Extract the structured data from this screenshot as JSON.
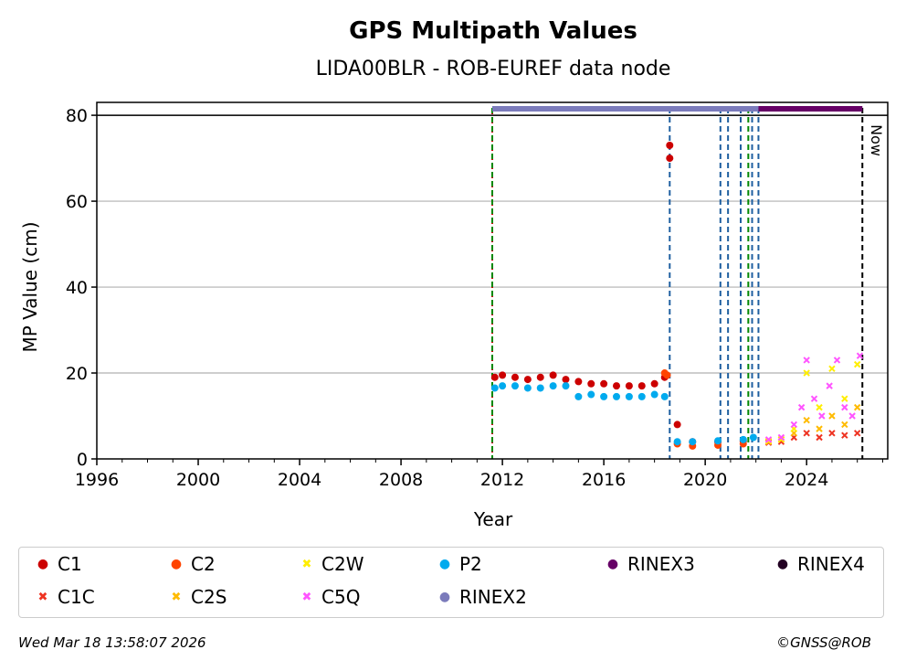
{
  "chart_data": {
    "type": "scatter",
    "title": "GPS Multipath Values",
    "subtitle": "LIDA00BLR - ROB-EUREF data node",
    "xlabel": "Year",
    "ylabel": "MP Value (cm)",
    "xlim": [
      1996,
      2027.2
    ],
    "ylim": [
      0,
      83
    ],
    "x_ticks": [
      1996,
      2000,
      2004,
      2008,
      2012,
      2016,
      2020,
      2024
    ],
    "x_tick_labels": [
      "1996",
      "2000",
      "2004",
      "2008",
      "2012",
      "2016",
      "2020",
      "2024"
    ],
    "y_ticks": [
      0,
      20,
      40,
      60,
      80
    ],
    "y_tick_labels": [
      "0",
      "20",
      "40",
      "60",
      "80"
    ],
    "grid": "horizontal",
    "reference_line_y": 80,
    "now_label": "Now",
    "now_x": 2026.2,
    "event_lines": [
      {
        "x": 2011.6,
        "color": "#cc0000",
        "style": "dotted"
      },
      {
        "x": 2011.6,
        "color": "#008800",
        "style": "dashed"
      },
      {
        "x": 2018.6,
        "color": "#1f5fa0",
        "style": "dashed"
      },
      {
        "x": 2020.6,
        "color": "#1f5fa0",
        "style": "dashed"
      },
      {
        "x": 2020.9,
        "color": "#1f5fa0",
        "style": "dashed"
      },
      {
        "x": 2021.4,
        "color": "#1f5fa0",
        "style": "dashed"
      },
      {
        "x": 2021.7,
        "color": "#008800",
        "style": "dashed"
      },
      {
        "x": 2021.85,
        "color": "#1f5fa0",
        "style": "dashed"
      },
      {
        "x": 2022.1,
        "color": "#1f5fa0",
        "style": "dashed"
      },
      {
        "x": 2026.2,
        "color": "#000000",
        "style": "dashed"
      }
    ],
    "rinex_bars": [
      {
        "name": "RINEX2",
        "x_start": 2011.6,
        "x_end": 2022.1,
        "y": 81.5,
        "color": "#7b7bbb"
      },
      {
        "name": "RINEX3",
        "x_start": 2022.1,
        "x_end": 2026.2,
        "y": 81.5,
        "color": "#660066"
      }
    ],
    "series": [
      {
        "name": "C1",
        "color": "#cc0000",
        "marker": "dot",
        "points": [
          [
            2011.7,
            19
          ],
          [
            2012.0,
            19.5
          ],
          [
            2012.5,
            19
          ],
          [
            2013.0,
            18.5
          ],
          [
            2013.5,
            19
          ],
          [
            2014.0,
            19.5
          ],
          [
            2014.5,
            18.5
          ],
          [
            2015.0,
            18
          ],
          [
            2015.5,
            17.5
          ],
          [
            2016.0,
            17.5
          ],
          [
            2016.5,
            17
          ],
          [
            2017.0,
            17
          ],
          [
            2017.5,
            17
          ],
          [
            2018.0,
            17.5
          ],
          [
            2018.4,
            19
          ],
          [
            2018.6,
            73
          ],
          [
            2018.6,
            70
          ],
          [
            2018.9,
            8
          ],
          [
            2019.5,
            4
          ],
          [
            2020.5,
            4
          ],
          [
            2021.5,
            4.2
          ]
        ]
      },
      {
        "name": "C1C",
        "color": "#ee3322",
        "marker": "x",
        "points": [
          [
            2022.5,
            3.8
          ],
          [
            2023.0,
            4
          ],
          [
            2023.5,
            5
          ],
          [
            2024.0,
            6
          ],
          [
            2024.5,
            5
          ],
          [
            2025.0,
            6
          ],
          [
            2025.5,
            5.5
          ],
          [
            2026.0,
            6
          ]
        ]
      },
      {
        "name": "C2",
        "color": "#ff4400",
        "marker": "dot",
        "points": [
          [
            2018.4,
            20
          ],
          [
            2018.5,
            19.5
          ],
          [
            2018.9,
            3.5
          ],
          [
            2019.5,
            3
          ],
          [
            2020.5,
            3.2
          ],
          [
            2021.5,
            3.5
          ]
        ]
      },
      {
        "name": "C2S",
        "color": "#ffbb00",
        "marker": "x",
        "points": [
          [
            2022.5,
            4
          ],
          [
            2023.0,
            4.5
          ],
          [
            2023.5,
            6
          ],
          [
            2024.0,
            9
          ],
          [
            2024.5,
            7
          ],
          [
            2025.0,
            10
          ],
          [
            2025.5,
            8
          ],
          [
            2026.0,
            12
          ]
        ]
      },
      {
        "name": "C2W",
        "color": "#ffee00",
        "marker": "x",
        "points": [
          [
            2022.5,
            4.2
          ],
          [
            2023.0,
            4.6
          ],
          [
            2023.5,
            7
          ],
          [
            2024.0,
            20
          ],
          [
            2024.5,
            12
          ],
          [
            2025.0,
            21
          ],
          [
            2025.5,
            14
          ],
          [
            2026.0,
            22
          ]
        ]
      },
      {
        "name": "C5Q",
        "color": "#ff55ff",
        "marker": "x",
        "points": [
          [
            2022.5,
            4.5
          ],
          [
            2023.0,
            5
          ],
          [
            2023.5,
            8
          ],
          [
            2023.8,
            12
          ],
          [
            2024.0,
            23
          ],
          [
            2024.3,
            14
          ],
          [
            2024.6,
            10
          ],
          [
            2024.9,
            17
          ],
          [
            2025.2,
            23
          ],
          [
            2025.5,
            12
          ],
          [
            2025.8,
            10
          ],
          [
            2026.1,
            24
          ]
        ]
      },
      {
        "name": "P2",
        "color": "#00aaee",
        "marker": "dot",
        "points": [
          [
            2011.7,
            16.5
          ],
          [
            2012.0,
            17
          ],
          [
            2012.5,
            17
          ],
          [
            2013.0,
            16.5
          ],
          [
            2013.5,
            16.5
          ],
          [
            2014.0,
            17
          ],
          [
            2014.5,
            17
          ],
          [
            2015.0,
            14.5
          ],
          [
            2015.5,
            15
          ],
          [
            2016.0,
            14.5
          ],
          [
            2016.5,
            14.5
          ],
          [
            2017.0,
            14.5
          ],
          [
            2017.5,
            14.5
          ],
          [
            2018.0,
            15
          ],
          [
            2018.4,
            14.5
          ],
          [
            2018.9,
            4
          ],
          [
            2019.5,
            4
          ],
          [
            2020.5,
            4.2
          ],
          [
            2021.5,
            4.5
          ],
          [
            2021.9,
            5
          ]
        ]
      }
    ]
  },
  "legend": [
    {
      "label": "C1",
      "color": "#cc0000",
      "symbol": "dot"
    },
    {
      "label": "C2",
      "color": "#ff4400",
      "symbol": "dot"
    },
    {
      "label": "C2W",
      "color": "#ffee00",
      "symbol": "x"
    },
    {
      "label": "P2",
      "color": "#00aaee",
      "symbol": "dot"
    },
    {
      "label": "RINEX3",
      "color": "#660066",
      "symbol": "dot"
    },
    {
      "label": "RINEX4",
      "color": "#220022",
      "symbol": "dot"
    },
    {
      "label": "C1C",
      "color": "#ee3322",
      "symbol": "x"
    },
    {
      "label": "C2S",
      "color": "#ffbb00",
      "symbol": "x"
    },
    {
      "label": "C5Q",
      "color": "#ff55ff",
      "symbol": "x"
    },
    {
      "label": "RINEX2",
      "color": "#7b7bbb",
      "symbol": "dot"
    }
  ],
  "footer": {
    "timestamp": "Wed Mar 18 13:58:07 2026",
    "credit": "©GNSS@ROB"
  }
}
